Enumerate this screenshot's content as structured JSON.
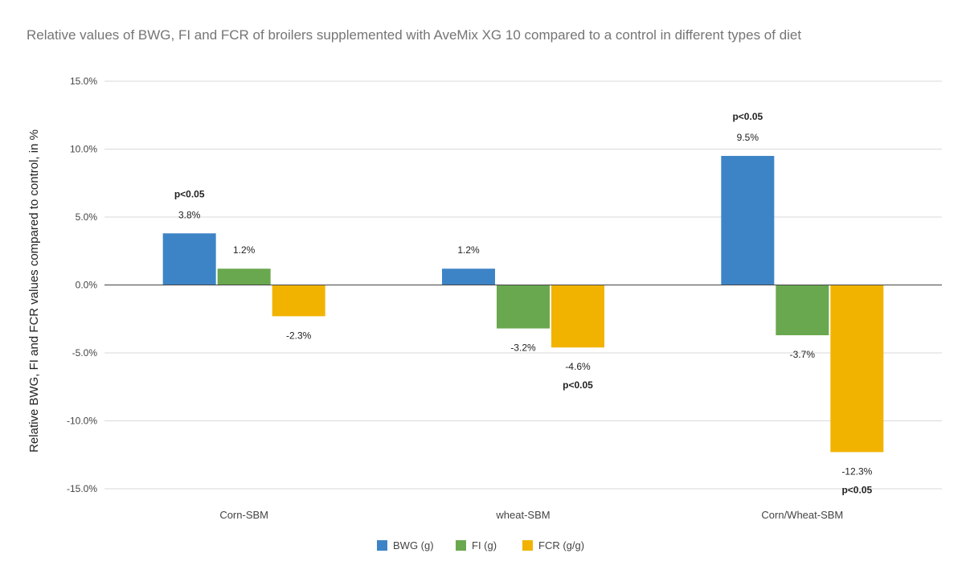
{
  "chart_data": {
    "type": "bar",
    "title": "Relative values of BWG, FI and FCR  of broilers supplemented with AveMix XG 10 compared to a control in different types of diet",
    "xlabel": "",
    "ylabel": "Relative BWG, FI and FCR values compared to control, in %",
    "ylim": [
      -15,
      15
    ],
    "yticks": [
      15,
      10,
      5,
      0,
      -5,
      -10,
      -15
    ],
    "ytick_labels": [
      "15.0%",
      "10.0%",
      "5.0%",
      "0.0%",
      "-5.0%",
      "-10.0%",
      "-15.0%"
    ],
    "grid": true,
    "legend_position": "bottom",
    "categories": [
      "Corn-SBM",
      "wheat-SBM",
      "Corn/Wheat-SBM"
    ],
    "series": [
      {
        "name": "BWG (g)",
        "color": "#3d84c6",
        "values": [
          3.8,
          1.2,
          9.5
        ],
        "labels": [
          "3.8%",
          "1.2%",
          "9.5%"
        ],
        "significance": [
          "p<0.05",
          "",
          "p<0.05"
        ]
      },
      {
        "name": "FI (g)",
        "color": "#6aa84f",
        "values": [
          1.2,
          -3.2,
          -3.7
        ],
        "labels": [
          "1.2%",
          "-3.2%",
          "-3.7%"
        ],
        "significance": [
          "",
          "",
          ""
        ]
      },
      {
        "name": "FCR (g/g)",
        "color": "#f1b300",
        "values": [
          -2.3,
          -4.6,
          -12.3
        ],
        "labels": [
          "-2.3%",
          "-4.6%",
          "-12.3%"
        ],
        "significance": [
          "",
          "p<0.05",
          "p<0.05"
        ]
      }
    ]
  }
}
